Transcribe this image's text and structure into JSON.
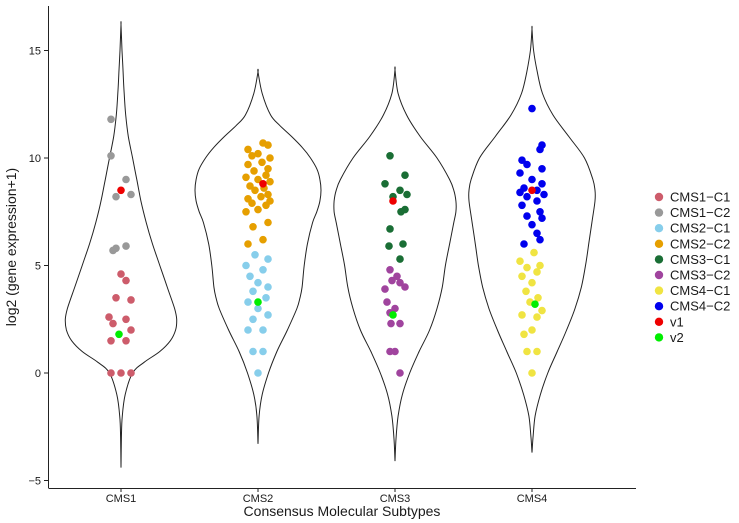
{
  "chart_data": {
    "type": "scatter",
    "subtype": "violin-with-jitter",
    "title": "",
    "xlabel": "Consensus Molecular Subtypes",
    "ylabel": "log2 (gene expression+1)",
    "ylim": [
      -5.5,
      16.5
    ],
    "yticks": [
      -5,
      0,
      5,
      10,
      15
    ],
    "categories": [
      "CMS1",
      "CMS2",
      "CMS3",
      "CMS4"
    ],
    "grid": false,
    "legend_position": "right",
    "violins": [
      {
        "category": "CMS1",
        "y": [
          -4.4,
          -3,
          -2,
          -1,
          0,
          0.5,
          1,
          1.5,
          2,
          2.5,
          3,
          4,
          5,
          6,
          7,
          8,
          9,
          10,
          11,
          12,
          13,
          14,
          15,
          16.2
        ],
        "w": [
          0,
          0.004,
          0.012,
          0.04,
          0.11,
          0.22,
          0.37,
          0.47,
          0.52,
          0.53,
          0.51,
          0.44,
          0.37,
          0.3,
          0.24,
          0.19,
          0.15,
          0.11,
          0.07,
          0.045,
          0.03,
          0.02,
          0.01,
          0
        ]
      },
      {
        "category": "CMS2",
        "y": [
          -3.3,
          -2,
          -1,
          0,
          1,
          2,
          3,
          3.5,
          4,
          5,
          6,
          7,
          7.5,
          8,
          8.5,
          9,
          9.5,
          10,
          10.5,
          11,
          11.5,
          12,
          13,
          14
        ],
        "w": [
          0,
          0.01,
          0.04,
          0.1,
          0.18,
          0.28,
          0.37,
          0.4,
          0.42,
          0.44,
          0.47,
          0.52,
          0.56,
          0.59,
          0.6,
          0.59,
          0.56,
          0.5,
          0.42,
          0.32,
          0.21,
          0.12,
          0.04,
          0
        ]
      },
      {
        "category": "CMS3",
        "y": [
          -4.1,
          -3,
          -2,
          -1,
          0,
          1,
          2,
          3,
          4,
          5,
          6,
          7,
          7.5,
          8,
          8.5,
          9,
          10,
          11,
          12,
          13,
          14.1
        ],
        "w": [
          0,
          0.01,
          0.03,
          0.07,
          0.14,
          0.23,
          0.33,
          0.4,
          0.45,
          0.48,
          0.52,
          0.56,
          0.58,
          0.58,
          0.56,
          0.52,
          0.4,
          0.24,
          0.11,
          0.03,
          0
        ]
      },
      {
        "category": "CMS4",
        "y": [
          -3.7,
          -3,
          -2,
          -1,
          0,
          1,
          2,
          3,
          4,
          5,
          6,
          7,
          8,
          8.5,
          9,
          10,
          11,
          12,
          13,
          14,
          15,
          16
        ],
        "w": [
          0,
          0.01,
          0.03,
          0.08,
          0.15,
          0.24,
          0.33,
          0.41,
          0.47,
          0.51,
          0.54,
          0.57,
          0.6,
          0.6,
          0.58,
          0.5,
          0.35,
          0.2,
          0.1,
          0.05,
          0.015,
          0
        ]
      }
    ],
    "series": [
      {
        "name": "CMS1-C1",
        "color": "#cd5c6b",
        "category": "CMS1",
        "points": [
          [
            -0.1,
            0.0
          ],
          [
            0.1,
            0.0
          ],
          [
            0.0,
            0.0
          ],
          [
            -0.1,
            1.5
          ],
          [
            0.05,
            1.5
          ],
          [
            0.1,
            2.0
          ],
          [
            -0.08,
            2.3
          ],
          [
            0.05,
            2.5
          ],
          [
            -0.12,
            2.6
          ],
          [
            0.1,
            3.4
          ],
          [
            -0.05,
            3.5
          ],
          [
            0.05,
            4.3
          ],
          [
            0.0,
            4.6
          ]
        ]
      },
      {
        "name": "CMS1-C2",
        "color": "#999999",
        "category": "CMS1",
        "points": [
          [
            -0.1,
            11.8
          ],
          [
            -0.1,
            10.1
          ],
          [
            0.05,
            9.0
          ],
          [
            0.1,
            8.3
          ],
          [
            -0.05,
            8.2
          ],
          [
            0.05,
            5.9
          ],
          [
            -0.05,
            5.8
          ],
          [
            -0.08,
            5.7
          ]
        ]
      },
      {
        "name": "CMS2-C1",
        "color": "#87ceeb",
        "category": "CMS2",
        "points": [
          [
            0.0,
            0.0
          ],
          [
            -0.05,
            1.0
          ],
          [
            0.05,
            1.0
          ],
          [
            -0.1,
            2.0
          ],
          [
            0.05,
            2.0
          ],
          [
            -0.05,
            2.5
          ],
          [
            0.1,
            2.7
          ],
          [
            0.0,
            3.0
          ],
          [
            -0.1,
            3.3
          ],
          [
            0.08,
            3.5
          ],
          [
            -0.05,
            3.8
          ],
          [
            0.1,
            4.0
          ],
          [
            0.0,
            4.2
          ],
          [
            -0.08,
            4.5
          ],
          [
            0.05,
            4.8
          ],
          [
            -0.12,
            5.0
          ],
          [
            0.1,
            5.3
          ],
          [
            -0.03,
            5.5
          ]
        ]
      },
      {
        "name": "CMS2-C2",
        "color": "#e69f00",
        "category": "CMS2",
        "points": [
          [
            -0.1,
            6.0
          ],
          [
            0.05,
            6.2
          ],
          [
            -0.05,
            6.8
          ],
          [
            0.1,
            7.0
          ],
          [
            -0.12,
            7.5
          ],
          [
            0.0,
            7.6
          ],
          [
            0.08,
            7.8
          ],
          [
            -0.06,
            7.9
          ],
          [
            0.12,
            8.0
          ],
          [
            -0.1,
            8.1
          ],
          [
            0.03,
            8.2
          ],
          [
            0.1,
            8.3
          ],
          [
            -0.03,
            8.5
          ],
          [
            0.06,
            8.6
          ],
          [
            -0.08,
            8.7
          ],
          [
            0.12,
            8.9
          ],
          [
            0.0,
            9.0
          ],
          [
            -0.12,
            9.1
          ],
          [
            0.08,
            9.2
          ],
          [
            -0.04,
            9.4
          ],
          [
            0.1,
            9.5
          ],
          [
            -0.1,
            9.7
          ],
          [
            0.04,
            9.8
          ],
          [
            0.12,
            10.0
          ],
          [
            -0.06,
            10.1
          ],
          [
            0.0,
            10.2
          ],
          [
            -0.1,
            10.4
          ],
          [
            0.1,
            10.6
          ],
          [
            0.05,
            10.7
          ]
        ]
      },
      {
        "name": "CMS3-C1",
        "color": "#1a6e35",
        "category": "CMS3",
        "points": [
          [
            -0.05,
            10.1
          ],
          [
            0.1,
            9.2
          ],
          [
            -0.1,
            8.8
          ],
          [
            0.05,
            8.5
          ],
          [
            0.12,
            8.3
          ],
          [
            -0.02,
            8.2
          ],
          [
            0.1,
            7.6
          ],
          [
            0.06,
            7.5
          ],
          [
            -0.05,
            6.7
          ],
          [
            0.08,
            6.0
          ],
          [
            -0.06,
            5.9
          ],
          [
            0.05,
            5.3
          ]
        ]
      },
      {
        "name": "CMS3-C2",
        "color": "#a0449e",
        "category": "CMS3",
        "points": [
          [
            -0.05,
            4.8
          ],
          [
            0.02,
            4.5
          ],
          [
            -0.03,
            4.3
          ],
          [
            0.05,
            4.2
          ],
          [
            0.1,
            4.0
          ],
          [
            -0.1,
            3.9
          ],
          [
            -0.08,
            3.3
          ],
          [
            0.0,
            3.0
          ],
          [
            -0.05,
            2.8
          ],
          [
            0.05,
            2.3
          ],
          [
            -0.04,
            2.3
          ],
          [
            -0.05,
            1.0
          ],
          [
            0.0,
            1.0
          ],
          [
            0.05,
            0.0
          ]
        ]
      },
      {
        "name": "CMS4-C1",
        "color": "#f0e442",
        "category": "CMS4",
        "points": [
          [
            0.0,
            0.0
          ],
          [
            -0.05,
            1.0
          ],
          [
            0.05,
            1.0
          ],
          [
            -0.08,
            1.8
          ],
          [
            0.0,
            2.0
          ],
          [
            0.05,
            2.6
          ],
          [
            -0.1,
            2.7
          ],
          [
            0.1,
            2.9
          ],
          [
            -0.02,
            3.3
          ],
          [
            0.06,
            3.5
          ],
          [
            -0.06,
            3.8
          ],
          [
            0.0,
            4.2
          ],
          [
            -0.1,
            4.5
          ],
          [
            0.05,
            4.7
          ],
          [
            -0.05,
            4.9
          ],
          [
            0.08,
            5.0
          ],
          [
            -0.12,
            5.2
          ],
          [
            0.02,
            5.6
          ]
        ]
      },
      {
        "name": "CMS4-C2",
        "color": "#0000ee",
        "category": "CMS4",
        "points": [
          [
            0.0,
            12.3
          ],
          [
            0.1,
            10.6
          ],
          [
            0.08,
            10.4
          ],
          [
            -0.1,
            9.9
          ],
          [
            -0.05,
            9.7
          ],
          [
            0.1,
            9.5
          ],
          [
            -0.12,
            9.3
          ],
          [
            0.0,
            9.0
          ],
          [
            0.1,
            8.8
          ],
          [
            -0.08,
            8.6
          ],
          [
            0.05,
            8.5
          ],
          [
            -0.12,
            8.4
          ],
          [
            0.12,
            8.3
          ],
          [
            -0.05,
            8.2
          ],
          [
            0.05,
            8.0
          ],
          [
            -0.1,
            7.8
          ],
          [
            0.08,
            7.5
          ],
          [
            -0.05,
            7.3
          ],
          [
            0.1,
            7.2
          ],
          [
            0.0,
            6.9
          ],
          [
            0.05,
            6.5
          ],
          [
            0.08,
            6.2
          ],
          [
            -0.08,
            6.0
          ]
        ]
      },
      {
        "name": "v1",
        "color": "#ee0000",
        "category": "all",
        "points": [
          [
            1,
            0.0,
            8.5
          ],
          [
            2,
            0.05,
            8.8
          ],
          [
            3,
            -0.02,
            8.0
          ],
          [
            4,
            0.0,
            8.5
          ]
        ]
      },
      {
        "name": "v2",
        "color": "#00ee00",
        "category": "all",
        "points": [
          [
            1,
            -0.02,
            1.8
          ],
          [
            2,
            0.0,
            3.3
          ],
          [
            3,
            -0.02,
            2.7
          ],
          [
            4,
            0.03,
            3.2
          ]
        ]
      }
    ]
  }
}
